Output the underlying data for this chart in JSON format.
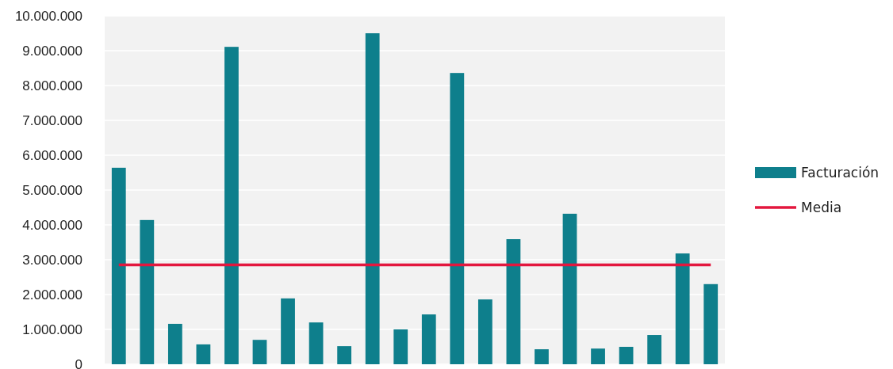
{
  "chart_data": {
    "type": "bar",
    "categories": [
      null,
      null,
      null,
      null,
      null,
      null,
      null,
      null,
      null,
      null,
      null,
      null,
      null,
      null,
      null,
      null,
      null,
      null,
      null,
      null,
      null,
      null
    ],
    "series": [
      {
        "name": "Facturación",
        "color": "#0e7f8c",
        "values": [
          5640000,
          4140000,
          1160000,
          570000,
          9110000,
          700000,
          1890000,
          1200000,
          520000,
          9500000,
          1000000,
          1430000,
          8360000,
          1860000,
          3590000,
          430000,
          4320000,
          450000,
          500000,
          840000,
          3180000,
          2300000
        ]
      },
      {
        "name": "Media",
        "type": "line",
        "color": "#e3173e",
        "values": [
          2850000,
          2850000,
          2850000,
          2850000,
          2850000,
          2850000,
          2850000,
          2850000,
          2850000,
          2850000,
          2850000,
          2850000,
          2850000,
          2850000,
          2850000,
          2850000,
          2850000,
          2850000,
          2850000,
          2850000,
          2850000,
          2850000
        ]
      }
    ],
    "ylim": [
      0,
      10000000
    ],
    "yticks": [
      {
        "value": 0,
        "label": "0"
      },
      {
        "value": 1000000,
        "label": "1.000.000"
      },
      {
        "value": 2000000,
        "label": "2.000.000"
      },
      {
        "value": 3000000,
        "label": "3.000.000"
      },
      {
        "value": 4000000,
        "label": "4.000.000"
      },
      {
        "value": 5000000,
        "label": "5.000.000"
      },
      {
        "value": 6000000,
        "label": "6.000.000"
      },
      {
        "value": 7000000,
        "label": "7.000.000"
      },
      {
        "value": 8000000,
        "label": "8.000.000"
      },
      {
        "value": 9000000,
        "label": "9.000.000"
      },
      {
        "value": 10000000,
        "label": "10.000.000"
      }
    ],
    "grid": "y",
    "legend": "right",
    "marker": "none",
    "line_style": "solid"
  }
}
